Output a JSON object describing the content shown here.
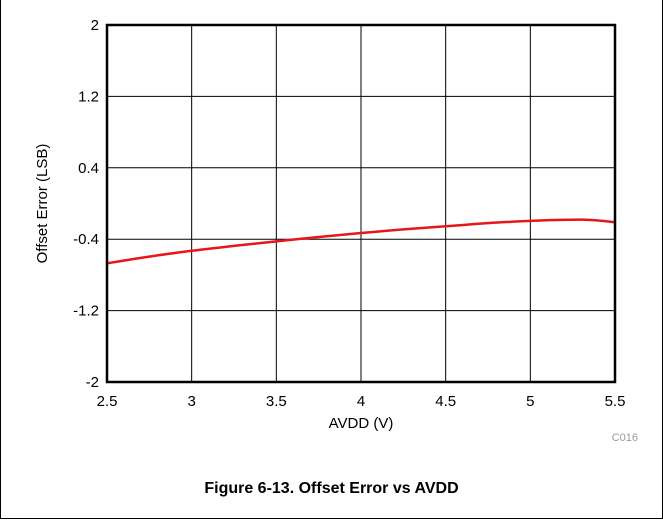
{
  "figure": {
    "caption": "Figure 6-13. Offset Error vs AVDD",
    "code": "C016"
  },
  "chart_data": {
    "type": "line",
    "title": "",
    "xlabel": "AVDD (V)",
    "ylabel": "Offset Error (LSB)",
    "xlim": [
      2.5,
      5.5
    ],
    "ylim": [
      -2,
      2
    ],
    "xticks": [
      2.5,
      3,
      3.5,
      4,
      4.5,
      5,
      5.5
    ],
    "xtick_labels": [
      "2.5",
      "3",
      "3.5",
      "4",
      "4.5",
      "5",
      "5.5"
    ],
    "yticks": [
      2,
      1.2,
      0.4,
      -0.4,
      -1.2,
      -2
    ],
    "ytick_labels": [
      "2",
      "1.2",
      "0.4",
      "-0.4",
      "-1.2",
      "-2"
    ],
    "grid": true,
    "series": [
      {
        "color": "#e8161b",
        "x": [
          2.5,
          2.75,
          3.0,
          3.25,
          3.5,
          3.75,
          4.0,
          4.25,
          4.5,
          4.75,
          5.0,
          5.15,
          5.3,
          5.4,
          5.5
        ],
        "y": [
          -0.67,
          -0.595,
          -0.53,
          -0.475,
          -0.425,
          -0.375,
          -0.33,
          -0.29,
          -0.255,
          -0.22,
          -0.195,
          -0.185,
          -0.18,
          -0.19,
          -0.21
        ]
      }
    ]
  }
}
